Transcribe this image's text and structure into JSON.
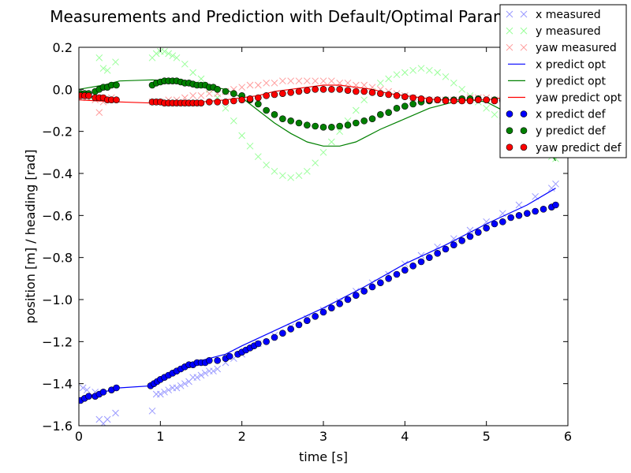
{
  "chart_data": {
    "type": "scatter",
    "title": "Measurements and Prediction with Default/Optimal Parameter Values",
    "xlabel": "time [s]",
    "ylabel": "position [m] / heading [rad]",
    "xlim": [
      0,
      6
    ],
    "ylim": [
      -1.6,
      0.2
    ],
    "xticks": [
      "0",
      "1",
      "2",
      "3",
      "4",
      "5",
      "6"
    ],
    "yticks": [
      "0.2",
      "0.0",
      "−0.2",
      "−0.4",
      "−0.6",
      "−0.8",
      "−1.0",
      "−1.2",
      "−1.4",
      "−1.6"
    ],
    "ytick_values": [
      0.2,
      0.0,
      -0.2,
      -0.4,
      -0.6,
      -0.8,
      -1.0,
      -1.2,
      -1.4,
      -1.6
    ],
    "grid": false,
    "legend_position": "top-right",
    "series": [
      {
        "name": "x measured",
        "kind": "cross",
        "color": "#9999ff",
        "x": [
          0.05,
          0.1,
          0.2,
          0.25,
          0.3,
          0.35,
          0.45,
          0.9,
          0.95,
          1.0,
          1.05,
          1.1,
          1.15,
          1.2,
          1.25,
          1.3,
          1.35,
          1.4,
          1.45,
          1.5,
          1.55,
          1.6,
          1.65,
          1.7,
          1.8,
          1.9,
          2.0,
          2.2,
          2.4,
          2.6,
          2.8,
          3.0,
          3.2,
          3.4,
          3.6,
          3.8,
          4.0,
          4.2,
          4.4,
          4.6,
          4.8,
          5.0,
          5.2,
          5.4,
          5.6,
          5.8,
          5.85
        ],
        "y": [
          -1.42,
          -1.43,
          -1.44,
          -1.57,
          -1.59,
          -1.57,
          -1.54,
          -1.53,
          -1.45,
          -1.45,
          -1.44,
          -1.43,
          -1.42,
          -1.42,
          -1.41,
          -1.4,
          -1.39,
          -1.37,
          -1.37,
          -1.36,
          -1.35,
          -1.34,
          -1.34,
          -1.33,
          -1.3,
          -1.28,
          -1.26,
          -1.21,
          -1.17,
          -1.13,
          -1.09,
          -1.05,
          -1.01,
          -0.96,
          -0.92,
          -0.88,
          -0.83,
          -0.79,
          -0.75,
          -0.71,
          -0.67,
          -0.63,
          -0.59,
          -0.55,
          -0.51,
          -0.47,
          -0.45
        ]
      },
      {
        "name": "y measured",
        "kind": "cross",
        "color": "#99ff99",
        "x": [
          0.0,
          0.05,
          0.1,
          0.15,
          0.25,
          0.3,
          0.35,
          0.45,
          0.9,
          0.95,
          1.0,
          1.05,
          1.1,
          1.15,
          1.2,
          1.3,
          1.4,
          1.5,
          1.6,
          1.7,
          1.8,
          1.9,
          2.0,
          2.1,
          2.2,
          2.3,
          2.4,
          2.5,
          2.6,
          2.7,
          2.8,
          2.9,
          3.0,
          3.1,
          3.2,
          3.3,
          3.4,
          3.5,
          3.6,
          3.7,
          3.8,
          3.9,
          4.0,
          4.1,
          4.2,
          4.3,
          4.4,
          4.5,
          4.6,
          4.7,
          4.8,
          4.9,
          5.0,
          5.1,
          5.2,
          5.3,
          5.4,
          5.5,
          5.6,
          5.7,
          5.8,
          5.85
        ],
        "y": [
          -0.02,
          -0.03,
          -0.02,
          -0.04,
          0.15,
          0.1,
          0.09,
          0.13,
          0.15,
          0.17,
          0.18,
          0.18,
          0.17,
          0.16,
          0.15,
          0.12,
          0.08,
          0.05,
          0.0,
          -0.04,
          -0.09,
          -0.15,
          -0.22,
          -0.27,
          -0.32,
          -0.36,
          -0.39,
          -0.41,
          -0.42,
          -0.41,
          -0.39,
          -0.35,
          -0.3,
          -0.25,
          -0.2,
          -0.15,
          -0.1,
          -0.05,
          -0.01,
          0.03,
          0.05,
          0.07,
          0.08,
          0.09,
          0.1,
          0.09,
          0.08,
          0.06,
          0.03,
          0.0,
          -0.03,
          -0.06,
          -0.09,
          -0.12,
          -0.15,
          -0.18,
          -0.21,
          -0.24,
          -0.27,
          -0.3,
          -0.32,
          -0.33
        ]
      },
      {
        "name": "yaw measured",
        "kind": "cross",
        "color": "#ff9999",
        "x": [
          0.0,
          0.1,
          0.2,
          0.25,
          0.3,
          0.4,
          0.9,
          1.0,
          1.1,
          1.2,
          1.3,
          1.4,
          1.5,
          1.6,
          1.7,
          1.8,
          1.9,
          2.0,
          2.1,
          2.2,
          2.3,
          2.4,
          2.5,
          2.6,
          2.7,
          2.8,
          2.9,
          3.0,
          3.1,
          3.2,
          3.3,
          3.4,
          3.5,
          3.6,
          3.7,
          3.8,
          3.9,
          4.0,
          4.1,
          4.2,
          4.3,
          4.4,
          4.5,
          4.6,
          4.7,
          4.8,
          4.9,
          5.0,
          5.1,
          5.2,
          5.3,
          5.4,
          5.5,
          5.6,
          5.7,
          5.8
        ],
        "y": [
          -0.03,
          -0.04,
          -0.05,
          -0.11,
          -0.06,
          -0.04,
          -0.06,
          -0.06,
          -0.05,
          -0.05,
          -0.04,
          -0.03,
          -0.03,
          -0.02,
          -0.02,
          -0.01,
          0.0,
          0.01,
          0.02,
          0.02,
          0.03,
          0.03,
          0.04,
          0.04,
          0.04,
          0.04,
          0.04,
          0.04,
          0.04,
          0.03,
          0.03,
          0.02,
          0.02,
          0.01,
          0.0,
          -0.01,
          -0.02,
          -0.03,
          -0.04,
          -0.05,
          -0.05,
          -0.05,
          -0.05,
          -0.05,
          -0.05,
          -0.04,
          -0.04,
          -0.04,
          -0.05,
          -0.05,
          -0.06,
          -0.06,
          -0.06,
          -0.05,
          -0.04,
          -0.03
        ]
      },
      {
        "name": "x predict opt",
        "kind": "line",
        "color": "#0000ff",
        "x": [
          0.0,
          0.5,
          0.9,
          1.0,
          1.2,
          1.5,
          1.8,
          2.0,
          2.5,
          3.0,
          3.5,
          4.0,
          4.5,
          5.0,
          5.5,
          5.85
        ],
        "y": [
          -1.47,
          -1.42,
          -1.41,
          -1.38,
          -1.33,
          -1.29,
          -1.26,
          -1.22,
          -1.13,
          -1.04,
          -0.94,
          -0.83,
          -0.74,
          -0.64,
          -0.55,
          -0.47
        ]
      },
      {
        "name": "y predict opt",
        "kind": "line",
        "color": "#008000",
        "x": [
          0.0,
          0.3,
          0.5,
          0.9,
          1.2,
          1.5,
          1.8,
          2.0,
          2.2,
          2.4,
          2.6,
          2.8,
          3.0,
          3.2,
          3.4,
          3.5,
          3.7,
          4.0,
          4.3,
          4.6,
          4.8,
          5.0,
          5.2,
          5.4,
          5.6,
          5.8,
          5.85
        ],
        "y": [
          0.0,
          0.02,
          0.04,
          0.045,
          0.04,
          0.02,
          0.0,
          -0.04,
          -0.1,
          -0.16,
          -0.21,
          -0.25,
          -0.27,
          -0.27,
          -0.25,
          -0.23,
          -0.19,
          -0.14,
          -0.09,
          -0.06,
          -0.05,
          -0.06,
          -0.1,
          -0.16,
          -0.23,
          -0.31,
          -0.34
        ]
      },
      {
        "name": "yaw predict opt",
        "kind": "line",
        "color": "#ff0000",
        "x": [
          0.0,
          0.5,
          0.9,
          1.2,
          1.5,
          1.8,
          2.0,
          2.2,
          2.4,
          2.6,
          2.8,
          3.0,
          3.2,
          3.4,
          3.6,
          3.8,
          4.0,
          4.2,
          4.4,
          4.6,
          4.8,
          5.0,
          5.2,
          5.4,
          5.6,
          5.85
        ],
        "y": [
          -0.05,
          -0.06,
          -0.065,
          -0.065,
          -0.06,
          -0.05,
          -0.04,
          -0.03,
          -0.01,
          0.0,
          0.01,
          0.02,
          0.02,
          0.01,
          0.0,
          -0.02,
          -0.03,
          -0.04,
          -0.05,
          -0.05,
          -0.05,
          -0.05,
          -0.04,
          -0.03,
          -0.01,
          0.0
        ]
      },
      {
        "name": "x predict def",
        "kind": "dot",
        "color": "#0000ff",
        "x": [
          0.02,
          0.07,
          0.12,
          0.2,
          0.25,
          0.3,
          0.4,
          0.46,
          0.88,
          0.92,
          0.96,
          1.0,
          1.05,
          1.1,
          1.15,
          1.2,
          1.25,
          1.3,
          1.35,
          1.4,
          1.45,
          1.5,
          1.55,
          1.6,
          1.7,
          1.8,
          1.85,
          1.95,
          2.0,
          2.05,
          2.1,
          2.15,
          2.2,
          2.3,
          2.4,
          2.5,
          2.6,
          2.7,
          2.8,
          2.9,
          3.0,
          3.1,
          3.2,
          3.3,
          3.4,
          3.5,
          3.6,
          3.7,
          3.8,
          3.9,
          4.0,
          4.1,
          4.2,
          4.3,
          4.4,
          4.5,
          4.6,
          4.7,
          4.8,
          4.9,
          5.0,
          5.1,
          5.2,
          5.3,
          5.4,
          5.5,
          5.6,
          5.7,
          5.8,
          5.85
        ],
        "y": [
          -1.48,
          -1.47,
          -1.46,
          -1.46,
          -1.45,
          -1.44,
          -1.43,
          -1.42,
          -1.41,
          -1.4,
          -1.39,
          -1.38,
          -1.37,
          -1.36,
          -1.35,
          -1.34,
          -1.33,
          -1.32,
          -1.31,
          -1.31,
          -1.3,
          -1.3,
          -1.3,
          -1.29,
          -1.29,
          -1.28,
          -1.27,
          -1.26,
          -1.25,
          -1.24,
          -1.23,
          -1.22,
          -1.21,
          -1.2,
          -1.18,
          -1.16,
          -1.14,
          -1.12,
          -1.1,
          -1.08,
          -1.06,
          -1.04,
          -1.02,
          -1.0,
          -0.98,
          -0.96,
          -0.94,
          -0.92,
          -0.9,
          -0.88,
          -0.86,
          -0.84,
          -0.82,
          -0.8,
          -0.78,
          -0.76,
          -0.74,
          -0.72,
          -0.7,
          -0.68,
          -0.66,
          -0.64,
          -0.63,
          -0.61,
          -0.6,
          -0.59,
          -0.58,
          -0.57,
          -0.56,
          -0.55
        ]
      },
      {
        "name": "y predict def",
        "kind": "dot",
        "color": "#008000",
        "x": [
          0.02,
          0.07,
          0.12,
          0.2,
          0.25,
          0.3,
          0.35,
          0.4,
          0.46,
          0.9,
          0.95,
          1.0,
          1.05,
          1.1,
          1.15,
          1.2,
          1.25,
          1.3,
          1.35,
          1.4,
          1.45,
          1.5,
          1.55,
          1.6,
          1.65,
          1.7,
          1.8,
          1.9,
          2.0,
          2.1,
          2.2,
          2.3,
          2.4,
          2.5,
          2.6,
          2.7,
          2.8,
          2.9,
          3.0,
          3.1,
          3.2,
          3.3,
          3.4,
          3.5,
          3.6,
          3.7,
          3.8,
          3.9,
          4.0,
          4.1,
          4.2,
          4.3,
          4.4,
          4.5,
          4.6,
          4.7,
          4.8,
          4.9,
          5.0,
          5.1,
          5.2,
          5.3,
          5.4,
          5.5,
          5.6
        ],
        "y": [
          -0.02,
          -0.02,
          -0.02,
          -0.01,
          0.0,
          0.01,
          0.01,
          0.02,
          0.02,
          0.02,
          0.03,
          0.035,
          0.04,
          0.04,
          0.04,
          0.04,
          0.035,
          0.03,
          0.03,
          0.025,
          0.02,
          0.02,
          0.02,
          0.01,
          0.01,
          0.0,
          -0.01,
          -0.02,
          -0.03,
          -0.05,
          -0.07,
          -0.1,
          -0.12,
          -0.14,
          -0.15,
          -0.16,
          -0.17,
          -0.175,
          -0.18,
          -0.18,
          -0.175,
          -0.17,
          -0.16,
          -0.15,
          -0.14,
          -0.12,
          -0.11,
          -0.09,
          -0.08,
          -0.07,
          -0.06,
          -0.055,
          -0.05,
          -0.05,
          -0.05,
          -0.045,
          -0.045,
          -0.045,
          -0.05,
          -0.05,
          -0.05,
          -0.055,
          -0.06,
          -0.07,
          -0.08
        ]
      },
      {
        "name": "yaw predict def",
        "kind": "dot",
        "color": "#ff0000",
        "x": [
          0.02,
          0.07,
          0.12,
          0.2,
          0.25,
          0.3,
          0.35,
          0.4,
          0.46,
          0.9,
          0.95,
          1.0,
          1.05,
          1.1,
          1.15,
          1.2,
          1.25,
          1.3,
          1.35,
          1.4,
          1.45,
          1.5,
          1.6,
          1.7,
          1.8,
          1.9,
          2.0,
          2.1,
          2.2,
          2.3,
          2.4,
          2.5,
          2.6,
          2.7,
          2.8,
          2.9,
          3.0,
          3.1,
          3.2,
          3.3,
          3.4,
          3.5,
          3.6,
          3.7,
          3.8,
          3.9,
          4.0,
          4.1,
          4.2,
          4.3,
          4.4,
          4.5,
          4.6,
          4.7,
          4.8,
          4.9,
          5.0,
          5.1,
          5.2,
          5.3,
          5.4,
          5.5,
          5.6,
          5.7,
          5.8
        ],
        "y": [
          -0.03,
          -0.03,
          -0.03,
          -0.04,
          -0.04,
          -0.04,
          -0.05,
          -0.05,
          -0.05,
          -0.06,
          -0.06,
          -0.06,
          -0.065,
          -0.065,
          -0.065,
          -0.065,
          -0.065,
          -0.065,
          -0.065,
          -0.065,
          -0.065,
          -0.065,
          -0.06,
          -0.06,
          -0.06,
          -0.055,
          -0.05,
          -0.045,
          -0.04,
          -0.03,
          -0.025,
          -0.02,
          -0.015,
          -0.01,
          -0.005,
          0.0,
          0.0,
          0.0,
          0.0,
          -0.005,
          -0.01,
          -0.01,
          -0.015,
          -0.02,
          -0.025,
          -0.03,
          -0.035,
          -0.04,
          -0.045,
          -0.05,
          -0.05,
          -0.055,
          -0.055,
          -0.055,
          -0.055,
          -0.05,
          -0.05,
          -0.055,
          -0.055,
          -0.06,
          -0.06,
          -0.06,
          -0.055,
          -0.05,
          -0.04
        ]
      }
    ]
  }
}
